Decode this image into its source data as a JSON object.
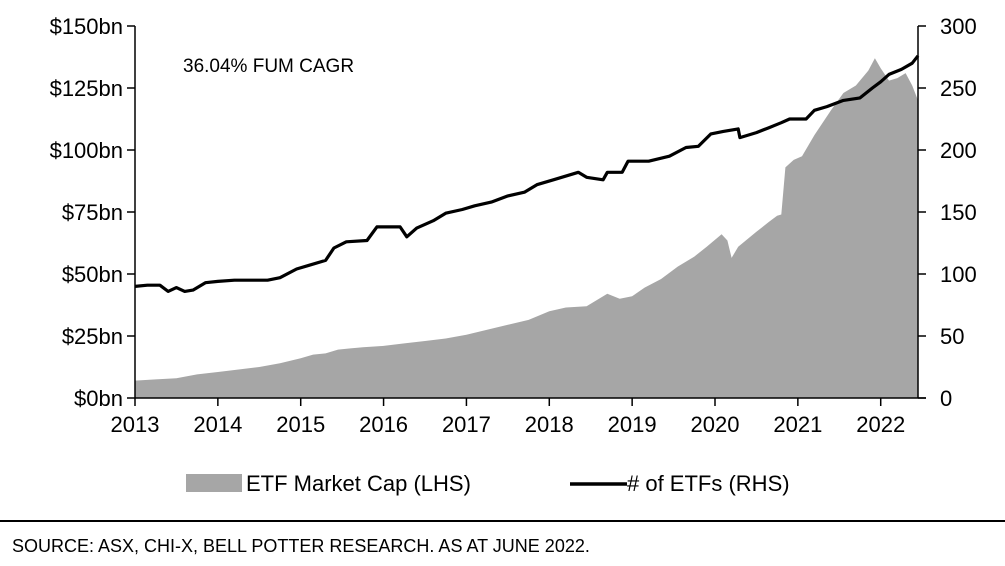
{
  "chart_data": {
    "type": "area",
    "annotation": "36.04% FUM CAGR",
    "x_ticks": [
      "2013",
      "2014",
      "2015",
      "2016",
      "2017",
      "2018",
      "2019",
      "2020",
      "2021",
      "2022"
    ],
    "y_left_ticks": [
      "$0bn",
      "$25bn",
      "$50bn",
      "$75bn",
      "$100bn",
      "$125bn",
      "$150bn"
    ],
    "y_right_ticks": [
      "0",
      "50",
      "100",
      "150",
      "200",
      "250",
      "300"
    ],
    "y_left_range": [
      0,
      150
    ],
    "y_right_range": [
      0,
      300
    ],
    "x_range": [
      2013.0,
      2022.45
    ],
    "legend_position": "bottom",
    "grid": false,
    "series": [
      {
        "name": "ETF Market Cap (LHS)",
        "type": "area",
        "axis": "left",
        "color": "#a6a6a6",
        "unit": "$bn",
        "points": [
          [
            2013.0,
            7
          ],
          [
            2013.25,
            7.5
          ],
          [
            2013.5,
            8
          ],
          [
            2013.75,
            9.5
          ],
          [
            2014.0,
            10.5
          ],
          [
            2014.25,
            11.5
          ],
          [
            2014.5,
            12.5
          ],
          [
            2014.75,
            14
          ],
          [
            2015.0,
            16
          ],
          [
            2015.15,
            17.5
          ],
          [
            2015.3,
            18
          ],
          [
            2015.45,
            19.5
          ],
          [
            2015.6,
            20
          ],
          [
            2015.75,
            20.5
          ],
          [
            2016.0,
            21
          ],
          [
            2016.25,
            22
          ],
          [
            2016.5,
            23
          ],
          [
            2016.75,
            24
          ],
          [
            2017.0,
            25.5
          ],
          [
            2017.25,
            27.5
          ],
          [
            2017.5,
            29.5
          ],
          [
            2017.75,
            31.5
          ],
          [
            2018.0,
            35
          ],
          [
            2018.2,
            36.5
          ],
          [
            2018.45,
            37
          ],
          [
            2018.7,
            42
          ],
          [
            2018.85,
            40
          ],
          [
            2019.0,
            41
          ],
          [
            2019.15,
            44.5
          ],
          [
            2019.35,
            48
          ],
          [
            2019.55,
            53
          ],
          [
            2019.75,
            57
          ],
          [
            2019.9,
            61
          ],
          [
            2020.08,
            66
          ],
          [
            2020.15,
            63.5
          ],
          [
            2020.2,
            56.5
          ],
          [
            2020.28,
            61
          ],
          [
            2020.5,
            67
          ],
          [
            2020.65,
            71
          ],
          [
            2020.75,
            73.5
          ],
          [
            2020.8,
            74
          ],
          [
            2020.85,
            93
          ],
          [
            2020.95,
            96
          ],
          [
            2021.05,
            97.5
          ],
          [
            2021.2,
            106
          ],
          [
            2021.4,
            116
          ],
          [
            2021.55,
            123
          ],
          [
            2021.7,
            126
          ],
          [
            2021.85,
            132
          ],
          [
            2021.93,
            137
          ],
          [
            2022.0,
            133
          ],
          [
            2022.1,
            128
          ],
          [
            2022.2,
            129
          ],
          [
            2022.3,
            131
          ],
          [
            2022.38,
            126
          ],
          [
            2022.45,
            120
          ]
        ]
      },
      {
        "name": "# of ETFs (RHS)",
        "type": "line",
        "axis": "right",
        "color": "#000000",
        "points": [
          [
            2013.0,
            90
          ],
          [
            2013.15,
            91
          ],
          [
            2013.3,
            91
          ],
          [
            2013.4,
            86
          ],
          [
            2013.5,
            89
          ],
          [
            2013.6,
            86
          ],
          [
            2013.7,
            87
          ],
          [
            2013.85,
            93
          ],
          [
            2014.0,
            94
          ],
          [
            2014.2,
            95
          ],
          [
            2014.6,
            95
          ],
          [
            2014.75,
            97
          ],
          [
            2014.95,
            104
          ],
          [
            2015.1,
            107
          ],
          [
            2015.3,
            111
          ],
          [
            2015.4,
            121
          ],
          [
            2015.55,
            126
          ],
          [
            2015.8,
            127
          ],
          [
            2015.92,
            138
          ],
          [
            2016.2,
            138
          ],
          [
            2016.28,
            130
          ],
          [
            2016.4,
            137
          ],
          [
            2016.6,
            143
          ],
          [
            2016.75,
            149
          ],
          [
            2016.95,
            152
          ],
          [
            2017.1,
            155
          ],
          [
            2017.3,
            158
          ],
          [
            2017.5,
            163
          ],
          [
            2017.7,
            166
          ],
          [
            2017.85,
            172
          ],
          [
            2018.05,
            176
          ],
          [
            2018.25,
            180
          ],
          [
            2018.35,
            182
          ],
          [
            2018.45,
            178
          ],
          [
            2018.65,
            176
          ],
          [
            2018.7,
            182
          ],
          [
            2018.88,
            182
          ],
          [
            2018.95,
            191
          ],
          [
            2019.2,
            191
          ],
          [
            2019.45,
            195
          ],
          [
            2019.65,
            202
          ],
          [
            2019.8,
            203
          ],
          [
            2019.95,
            213
          ],
          [
            2020.1,
            215
          ],
          [
            2020.28,
            217
          ],
          [
            2020.3,
            210
          ],
          [
            2020.5,
            214
          ],
          [
            2020.65,
            218
          ],
          [
            2020.8,
            222
          ],
          [
            2020.9,
            225
          ],
          [
            2021.1,
            225
          ],
          [
            2021.2,
            232
          ],
          [
            2021.35,
            235
          ],
          [
            2021.55,
            240
          ],
          [
            2021.75,
            242
          ],
          [
            2021.9,
            250
          ],
          [
            2022.0,
            255
          ],
          [
            2022.1,
            261
          ],
          [
            2022.25,
            265
          ],
          [
            2022.38,
            270
          ],
          [
            2022.45,
            276
          ]
        ]
      }
    ]
  },
  "source": "SOURCE: ASX, CHI-X, BELL POTTER RESEARCH. AS AT JUNE 2022."
}
